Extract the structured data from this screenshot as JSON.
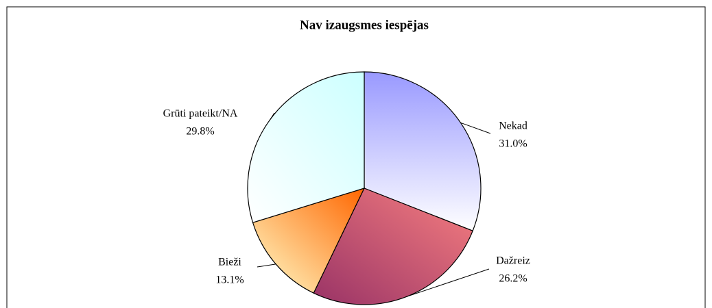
{
  "chart_data": {
    "type": "pie",
    "title": "Nav izaugsmes iespējas",
    "categories": [
      "Nekad",
      "Dažreiz",
      "Bieži",
      "Grūti pateikt/NA"
    ],
    "values": [
      31.0,
      26.2,
      13.1,
      29.8
    ],
    "value_labels": [
      "31.0%",
      "26.2%",
      "13.1%",
      "29.8%"
    ],
    "colors": [
      "#9999ff",
      "#993366",
      "#ff6600",
      "#ccffff"
    ]
  }
}
